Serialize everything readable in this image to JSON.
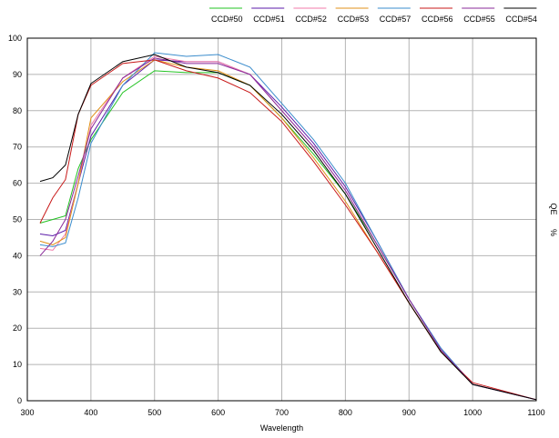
{
  "chart_data": {
    "type": "line",
    "xlabel": "Wavelength",
    "ylabel": "QE %",
    "xlim": [
      300,
      1100
    ],
    "ylim": [
      0,
      100
    ],
    "x_ticks": [
      300,
      400,
      500,
      600,
      700,
      800,
      900,
      1000,
      1100
    ],
    "y_ticks": [
      0,
      10,
      20,
      30,
      40,
      50,
      60,
      70,
      80,
      90,
      100
    ],
    "grid": "major",
    "legend_position": "top-right",
    "series": [
      {
        "name": "CCD#50",
        "color": "#22c322",
        "x": [
          320,
          340,
          360,
          380,
          400,
          450,
          500,
          550,
          600,
          650,
          700,
          750,
          800,
          850,
          900,
          950,
          1000,
          1100
        ],
        "y": [
          49,
          50,
          51,
          64,
          72,
          85,
          91,
          90.5,
          90.5,
          87,
          78,
          68,
          57,
          43,
          28,
          14,
          4.5,
          0.3
        ]
      },
      {
        "name": "CCD#51",
        "color": "#5a1aa8",
        "x": [
          320,
          340,
          360,
          380,
          400,
          450,
          500,
          550,
          600,
          650,
          700,
          750,
          800,
          850,
          900,
          950,
          1000,
          1100
        ],
        "y": [
          46,
          45.5,
          47,
          60,
          73,
          87,
          94,
          93.5,
          93.5,
          90,
          81,
          71,
          59,
          44,
          28,
          14.5,
          4.5,
          0.3
        ]
      },
      {
        "name": "CCD#52",
        "color": "#f07aa8",
        "x": [
          320,
          340,
          360,
          380,
          400,
          450,
          500,
          550,
          600,
          650,
          700,
          750,
          800,
          850,
          900,
          950,
          1000,
          1100
        ],
        "y": [
          42,
          41.5,
          46,
          60,
          76,
          89,
          95,
          93.5,
          93.5,
          90,
          80,
          70,
          58,
          43,
          28,
          14,
          4.5,
          0.3
        ]
      },
      {
        "name": "CCD#53",
        "color": "#e09018",
        "x": [
          320,
          340,
          360,
          380,
          400,
          450,
          500,
          550,
          600,
          650,
          700,
          750,
          800,
          850,
          900,
          950,
          1000,
          1100
        ],
        "y": [
          44,
          43,
          45,
          60,
          78,
          88,
          94,
          92,
          91,
          87,
          78,
          67,
          55,
          41,
          27,
          13.5,
          4.5,
          0.3
        ]
      },
      {
        "name": "CCD#57",
        "color": "#3a8ccc",
        "x": [
          320,
          340,
          360,
          380,
          400,
          450,
          500,
          550,
          600,
          650,
          700,
          750,
          800,
          850,
          900,
          950,
          1000,
          1100
        ],
        "y": [
          43,
          42.5,
          43.5,
          56,
          71,
          87,
          96,
          95,
          95.5,
          92,
          82,
          72,
          60,
          44,
          28,
          14.5,
          4.5,
          0.3
        ]
      },
      {
        "name": "CCD#56",
        "color": "#c81818",
        "x": [
          320,
          340,
          360,
          380,
          400,
          450,
          500,
          550,
          600,
          650,
          700,
          750,
          800,
          850,
          900,
          950,
          1000,
          1100
        ],
        "y": [
          49,
          56,
          61,
          79,
          87,
          93,
          94,
          91,
          89,
          85,
          77,
          66,
          54,
          41,
          27,
          13.5,
          5,
          0.3
        ]
      },
      {
        "name": "CCD#55",
        "color": "#8a2a9a",
        "x": [
          320,
          340,
          360,
          380,
          400,
          450,
          500,
          550,
          600,
          650,
          700,
          750,
          800,
          850,
          900,
          950,
          1000,
          1100
        ],
        "y": [
          40,
          44,
          50,
          62,
          75,
          89,
          94.5,
          93,
          93,
          90,
          80,
          70,
          58,
          43,
          28,
          14,
          4.5,
          0.3
        ]
      },
      {
        "name": "CCD#54",
        "color": "#000000",
        "x": [
          320,
          340,
          360,
          380,
          400,
          450,
          500,
          550,
          600,
          650,
          700,
          750,
          800,
          850,
          900,
          950,
          1000,
          1100
        ],
        "y": [
          60.5,
          61.5,
          65,
          79,
          87.5,
          93.5,
          95.5,
          92,
          90.5,
          87,
          79,
          69,
          57,
          42,
          27,
          13.5,
          4.5,
          0.3
        ]
      }
    ]
  }
}
